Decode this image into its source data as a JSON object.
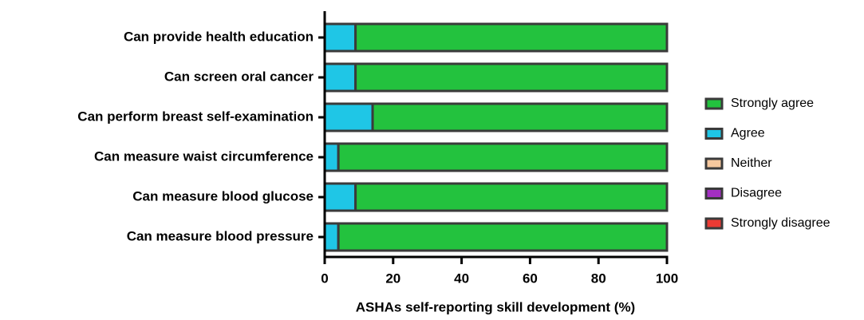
{
  "chart_data": {
    "type": "stacked-barh",
    "xlabel": "ASHAs self-reporting skill development (%)",
    "categories": [
      "Can provide health education",
      "Can screen oral cancer",
      "Can perform breast self-examination",
      "Can measure waist circumference",
      "Can measure blood glucose",
      "Can measure blood pressure"
    ],
    "series": [
      {
        "name": "Strongly agree",
        "color": "#23c23e",
        "values": [
          91,
          91,
          86,
          96,
          91,
          96
        ]
      },
      {
        "name": "Agree",
        "color": "#1fc6e6",
        "values": [
          9,
          9,
          14,
          4,
          9,
          4
        ]
      },
      {
        "name": "Neither",
        "color": "#f6c89e",
        "values": [
          0,
          0,
          0,
          0,
          0,
          0
        ]
      },
      {
        "name": "Disagree",
        "color": "#a32fc2",
        "values": [
          0,
          0,
          0,
          0,
          0,
          0
        ]
      },
      {
        "name": "Strongly disagree",
        "color": "#ec3b34",
        "values": [
          0,
          0,
          0,
          0,
          0,
          0
        ]
      }
    ],
    "xlim": [
      0,
      100
    ],
    "xticks": [
      0,
      20,
      40,
      60,
      80,
      100
    ],
    "legend": "right"
  }
}
